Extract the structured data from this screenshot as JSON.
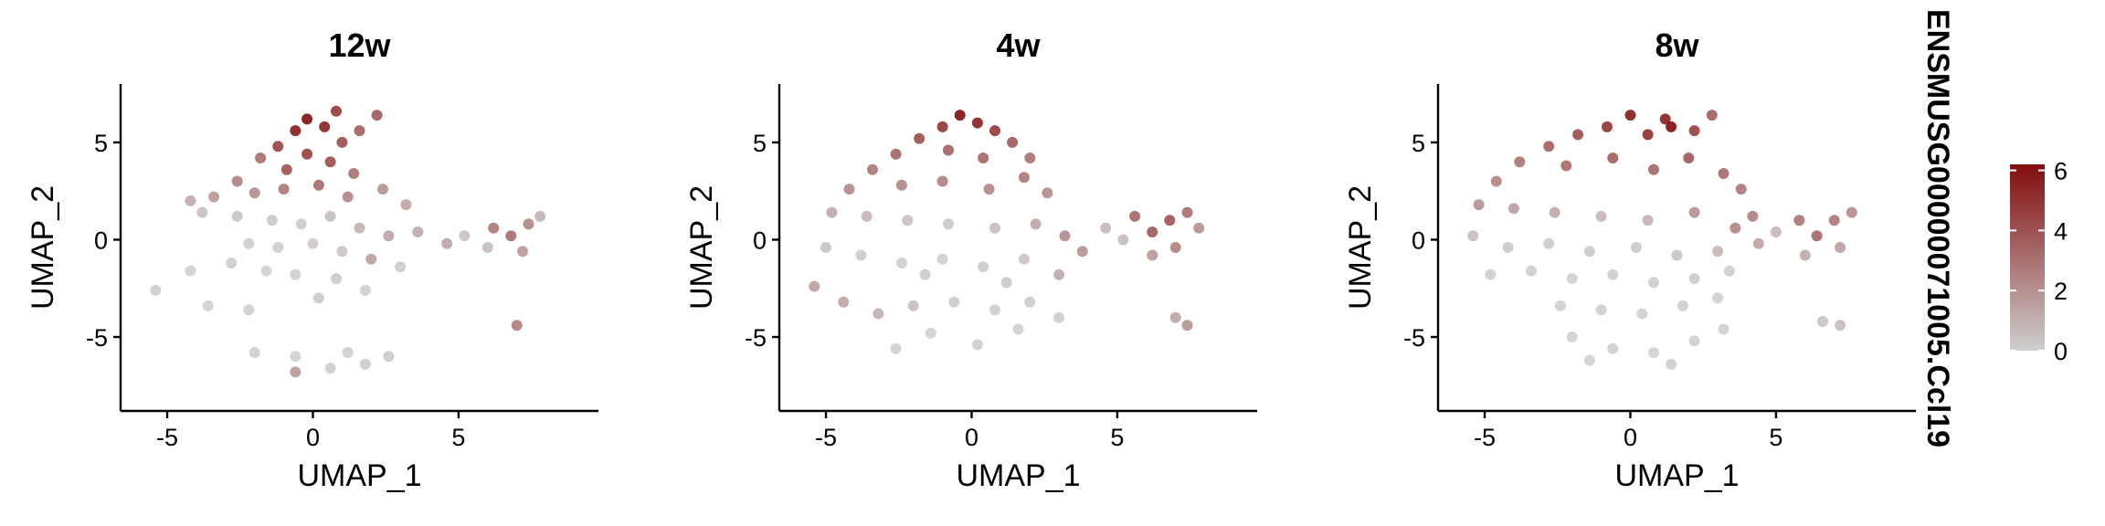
{
  "chart_data": [
    {
      "type": "scatter",
      "title": "12w",
      "xlabel": "UMAP_1",
      "ylabel": "UMAP_2",
      "xlim": [
        -6.6,
        9.8
      ],
      "ylim": [
        -8.8,
        8.0
      ],
      "xticks": [
        -5,
        0,
        5
      ],
      "yticks": [
        -5,
        0,
        5
      ],
      "points": [
        [
          -1.8,
          4.2,
          3.2
        ],
        [
          -1.2,
          4.8,
          4.5
        ],
        [
          -0.6,
          5.6,
          5.8
        ],
        [
          -0.2,
          6.2,
          6.2
        ],
        [
          0.4,
          5.8,
          5.5
        ],
        [
          1.0,
          5.0,
          4.2
        ],
        [
          1.6,
          5.6,
          3.6
        ],
        [
          2.2,
          6.4,
          3.8
        ],
        [
          0.8,
          6.6,
          4.8
        ],
        [
          -0.9,
          3.6,
          4.0
        ],
        [
          -0.2,
          4.4,
          4.6
        ],
        [
          0.6,
          4.0,
          4.2
        ],
        [
          1.4,
          3.4,
          3.0
        ],
        [
          -2.6,
          3.0,
          2.6
        ],
        [
          -3.4,
          2.2,
          1.8
        ],
        [
          -4.2,
          2.0,
          1.2
        ],
        [
          -2.0,
          2.4,
          2.2
        ],
        [
          -1.0,
          2.6,
          2.8
        ],
        [
          0.2,
          2.8,
          3.2
        ],
        [
          1.2,
          2.2,
          2.4
        ],
        [
          2.4,
          2.6,
          2.0
        ],
        [
          3.2,
          1.8,
          1.4
        ],
        [
          -3.8,
          1.4,
          0.6
        ],
        [
          -2.6,
          1.2,
          0.4
        ],
        [
          -1.4,
          1.0,
          0.3
        ],
        [
          -0.4,
          0.8,
          0.2
        ],
        [
          0.6,
          1.2,
          0.6
        ],
        [
          1.6,
          0.6,
          1.0
        ],
        [
          2.6,
          0.2,
          1.4
        ],
        [
          3.6,
          0.4,
          1.2
        ],
        [
          -2.2,
          -0.2,
          0.1
        ],
        [
          -1.2,
          -0.4,
          0.1
        ],
        [
          0.0,
          -0.2,
          0.2
        ],
        [
          1.0,
          -0.6,
          0.4
        ],
        [
          2.0,
          -1.0,
          1.6
        ],
        [
          3.0,
          -1.4,
          0.2
        ],
        [
          -2.8,
          -1.2,
          0.1
        ],
        [
          -1.6,
          -1.6,
          0.0
        ],
        [
          -0.6,
          -1.8,
          0.1
        ],
        [
          0.8,
          -2.0,
          0.2
        ],
        [
          1.8,
          -2.6,
          0.1
        ],
        [
          -4.2,
          -1.6,
          0.0
        ],
        [
          -5.4,
          -2.6,
          0.1
        ],
        [
          -3.6,
          -3.4,
          0.0
        ],
        [
          -2.2,
          -3.6,
          0.1
        ],
        [
          0.2,
          -3.0,
          0.2
        ],
        [
          1.2,
          -5.8,
          0.1
        ],
        [
          1.8,
          -6.4,
          0.2
        ],
        [
          0.6,
          -6.6,
          0.1
        ],
        [
          -0.6,
          -6.0,
          0.0
        ],
        [
          -2.0,
          -5.8,
          0.1
        ],
        [
          6.2,
          0.6,
          2.8
        ],
        [
          6.8,
          0.2,
          3.2
        ],
        [
          7.4,
          0.8,
          2.4
        ],
        [
          7.8,
          1.2,
          1.0
        ],
        [
          7.2,
          -0.6,
          1.8
        ],
        [
          6.0,
          -0.4,
          0.6
        ],
        [
          5.2,
          0.2,
          0.4
        ],
        [
          4.6,
          -0.2,
          1.4
        ],
        [
          7.0,
          -4.4,
          2.6
        ],
        [
          2.6,
          -6.0,
          0.2
        ],
        [
          -0.6,
          -6.8,
          1.8
        ]
      ]
    },
    {
      "type": "scatter",
      "title": "4w",
      "xlabel": "UMAP_1",
      "ylabel": "UMAP_2",
      "xlim": [
        -6.6,
        9.8
      ],
      "ylim": [
        -8.8,
        8.0
      ],
      "xticks": [
        -5,
        0,
        5
      ],
      "yticks": [
        -5,
        0,
        5
      ],
      "points": [
        [
          -0.4,
          6.4,
          6.2
        ],
        [
          0.2,
          6.0,
          5.6
        ],
        [
          -1.0,
          5.8,
          5.0
        ],
        [
          0.8,
          5.6,
          4.8
        ],
        [
          -1.8,
          5.2,
          4.2
        ],
        [
          1.4,
          5.0,
          3.8
        ],
        [
          -2.6,
          4.4,
          3.4
        ],
        [
          2.0,
          4.2,
          3.0
        ],
        [
          -3.4,
          3.6,
          2.8
        ],
        [
          -0.8,
          4.6,
          3.6
        ],
        [
          0.4,
          4.2,
          3.4
        ],
        [
          1.8,
          3.2,
          2.8
        ],
        [
          2.6,
          2.4,
          2.2
        ],
        [
          -4.2,
          2.6,
          2.2
        ],
        [
          -2.4,
          2.8,
          2.4
        ],
        [
          -1.0,
          3.0,
          2.6
        ],
        [
          0.6,
          2.6,
          2.4
        ],
        [
          -4.8,
          1.4,
          1.2
        ],
        [
          -3.6,
          1.2,
          0.8
        ],
        [
          -2.2,
          1.0,
          0.5
        ],
        [
          -0.8,
          0.8,
          0.3
        ],
        [
          0.8,
          0.6,
          0.6
        ],
        [
          2.2,
          0.8,
          1.4
        ],
        [
          3.2,
          0.2,
          2.2
        ],
        [
          3.8,
          -0.6,
          2.0
        ],
        [
          -5.0,
          -0.4,
          0.4
        ],
        [
          -3.8,
          -0.8,
          0.2
        ],
        [
          -2.4,
          -1.2,
          0.1
        ],
        [
          -1.0,
          -1.0,
          0.1
        ],
        [
          0.4,
          -1.4,
          0.2
        ],
        [
          1.8,
          -1.0,
          0.4
        ],
        [
          3.0,
          -1.8,
          1.2
        ],
        [
          -5.4,
          -2.4,
          1.6
        ],
        [
          -4.4,
          -3.2,
          1.4
        ],
        [
          -3.2,
          -3.8,
          1.0
        ],
        [
          -2.0,
          -3.4,
          0.6
        ],
        [
          -0.6,
          -3.2,
          0.2
        ],
        [
          0.8,
          -3.6,
          0.1
        ],
        [
          2.0,
          -3.2,
          0.2
        ],
        [
          -1.4,
          -4.8,
          0.0
        ],
        [
          0.2,
          -5.4,
          0.1
        ],
        [
          1.6,
          -4.6,
          0.0
        ],
        [
          3.0,
          -4.0,
          0.1
        ],
        [
          -2.6,
          -5.6,
          0.0
        ],
        [
          5.6,
          1.2,
          3.4
        ],
        [
          6.2,
          0.4,
          3.8
        ],
        [
          6.8,
          1.0,
          4.0
        ],
        [
          7.4,
          1.4,
          3.2
        ],
        [
          7.8,
          0.6,
          2.0
        ],
        [
          7.0,
          -0.4,
          2.6
        ],
        [
          6.2,
          -0.8,
          1.8
        ],
        [
          5.2,
          0.0,
          0.6
        ],
        [
          4.6,
          0.6,
          0.8
        ],
        [
          7.0,
          -4.0,
          1.4
        ],
        [
          7.4,
          -4.4,
          2.0
        ],
        [
          -1.6,
          -1.8,
          0.2
        ],
        [
          1.2,
          -2.2,
          0.3
        ]
      ]
    },
    {
      "type": "scatter",
      "title": "8w",
      "xlabel": "UMAP_1",
      "ylabel": "UMAP_2",
      "xlim": [
        -6.6,
        9.8
      ],
      "ylim": [
        -8.8,
        8.0
      ],
      "xticks": [
        -5,
        0,
        5
      ],
      "yticks": [
        -5,
        0,
        5
      ],
      "points": [
        [
          0.0,
          6.4,
          5.8
        ],
        [
          1.4,
          5.8,
          6.2
        ],
        [
          1.2,
          6.2,
          5.6
        ],
        [
          -0.8,
          5.8,
          5.0
        ],
        [
          0.6,
          5.4,
          5.2
        ],
        [
          2.2,
          5.6,
          4.6
        ],
        [
          2.8,
          6.4,
          3.6
        ],
        [
          -1.8,
          5.4,
          4.2
        ],
        [
          -2.8,
          4.8,
          3.6
        ],
        [
          2.0,
          4.2,
          3.8
        ],
        [
          3.2,
          3.4,
          3.2
        ],
        [
          3.8,
          2.6,
          2.8
        ],
        [
          -3.8,
          4.0,
          3.0
        ],
        [
          -4.6,
          3.0,
          2.4
        ],
        [
          -2.2,
          3.8,
          3.2
        ],
        [
          -0.6,
          4.2,
          3.6
        ],
        [
          0.8,
          3.6,
          3.4
        ],
        [
          -5.2,
          1.8,
          2.0
        ],
        [
          -4.0,
          1.6,
          1.6
        ],
        [
          -2.6,
          1.4,
          1.2
        ],
        [
          -1.0,
          1.2,
          0.8
        ],
        [
          0.6,
          1.0,
          1.0
        ],
        [
          2.2,
          1.4,
          2.0
        ],
        [
          3.6,
          0.6,
          2.4
        ],
        [
          4.2,
          1.2,
          2.6
        ],
        [
          -5.4,
          0.2,
          0.6
        ],
        [
          -4.2,
          -0.4,
          0.3
        ],
        [
          -2.8,
          -0.2,
          0.2
        ],
        [
          -1.4,
          -0.6,
          0.2
        ],
        [
          0.2,
          -0.4,
          0.3
        ],
        [
          1.6,
          -0.8,
          0.4
        ],
        [
          3.0,
          -0.6,
          0.8
        ],
        [
          4.4,
          -0.2,
          1.4
        ],
        [
          -4.8,
          -1.8,
          0.1
        ],
        [
          -3.4,
          -1.6,
          0.1
        ],
        [
          -2.0,
          -2.0,
          0.0
        ],
        [
          -0.6,
          -1.8,
          0.1
        ],
        [
          0.8,
          -2.2,
          0.1
        ],
        [
          2.2,
          -2.0,
          0.2
        ],
        [
          3.4,
          -1.6,
          0.1
        ],
        [
          -2.4,
          -3.4,
          0.0
        ],
        [
          -1.0,
          -3.6,
          0.1
        ],
        [
          0.4,
          -3.8,
          0.0
        ],
        [
          1.8,
          -3.4,
          0.1
        ],
        [
          3.0,
          -3.0,
          0.0
        ],
        [
          -2.0,
          -5.0,
          0.0
        ],
        [
          -0.6,
          -5.6,
          0.1
        ],
        [
          0.8,
          -5.8,
          0.0
        ],
        [
          2.2,
          -5.2,
          0.1
        ],
        [
          3.2,
          -4.6,
          0.0
        ],
        [
          -1.4,
          -6.2,
          0.0
        ],
        [
          1.4,
          -6.4,
          0.1
        ],
        [
          5.8,
          1.0,
          3.0
        ],
        [
          6.4,
          0.2,
          3.4
        ],
        [
          7.0,
          1.0,
          2.8
        ],
        [
          7.6,
          1.4,
          2.2
        ],
        [
          7.2,
          -0.4,
          1.6
        ],
        [
          6.0,
          -0.8,
          1.2
        ],
        [
          5.0,
          0.4,
          0.8
        ],
        [
          6.6,
          -4.2,
          0.4
        ],
        [
          7.2,
          -4.4,
          0.6
        ]
      ]
    }
  ],
  "legend": {
    "title": "ENSMUSG00000071005.Ccl19",
    "ticks": [
      0,
      2,
      4,
      6
    ],
    "range": [
      0,
      6.2
    ],
    "colors": {
      "low": "#cfcfcf",
      "high": "#820d0d"
    }
  }
}
